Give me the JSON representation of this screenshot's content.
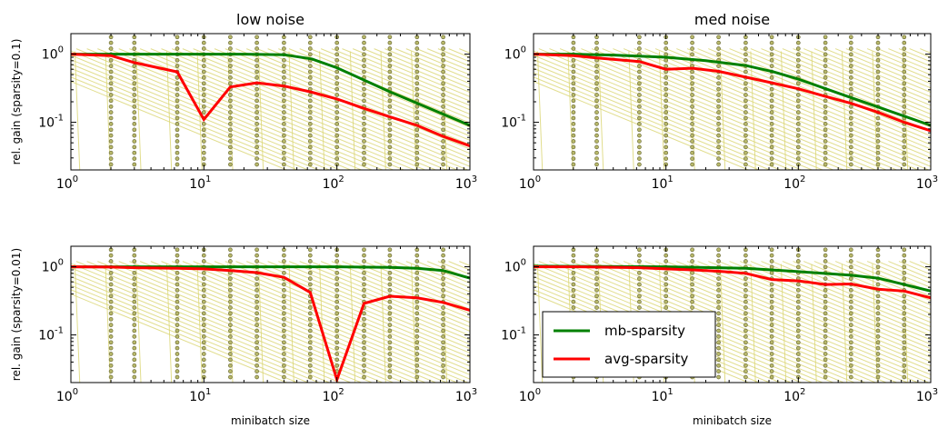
{
  "chart_data": [
    {
      "type": "line",
      "title": "low noise",
      "xlabel": "",
      "ylabel": "rel. gain (sparsity=0.1)",
      "xscale": "log",
      "yscale": "log",
      "xlim": [
        1,
        1000
      ],
      "ylim": [
        0.02,
        2
      ],
      "xticks": [
        {
          "base": "10",
          "exp": "0"
        },
        {
          "base": "10",
          "exp": "1"
        },
        {
          "base": "10",
          "exp": "2"
        },
        {
          "base": "10",
          "exp": "3"
        }
      ],
      "yticks": [
        {
          "value": 1,
          "base": "10",
          "exp": "0"
        },
        {
          "value": 0.1,
          "base": "10",
          "exp": "-1"
        }
      ],
      "series": [
        {
          "name": "mb-sparsity",
          "color": "#008000",
          "x": [
            1,
            2,
            4,
            10,
            20,
            40,
            65,
            100,
            250,
            1000
          ],
          "y": [
            1.0,
            1.0,
            1.0,
            1.0,
            1.0,
            0.98,
            0.85,
            0.63,
            0.28,
            0.09
          ]
        },
        {
          "name": "avg-sparsity",
          "color": "#ff0000",
          "x": [
            1,
            2,
            3,
            6.3,
            10,
            15.8,
            25,
            40,
            63,
            100,
            160,
            250,
            400,
            630,
            1000
          ],
          "y": [
            1.0,
            0.95,
            0.75,
            0.55,
            0.11,
            0.33,
            0.38,
            0.34,
            0.28,
            0.22,
            0.16,
            0.12,
            0.09,
            0.062,
            0.045
          ]
        }
      ],
      "background_curves": {
        "color": "#d9d470",
        "description_free": true
      }
    },
    {
      "type": "line",
      "title": "med noise",
      "xlabel": "",
      "ylabel": "",
      "xscale": "log",
      "yscale": "log",
      "xlim": [
        1,
        1000
      ],
      "ylim": [
        0.02,
        2
      ],
      "xticks": [
        {
          "base": "10",
          "exp": "0"
        },
        {
          "base": "10",
          "exp": "1"
        },
        {
          "base": "10",
          "exp": "2"
        },
        {
          "base": "10",
          "exp": "3"
        }
      ],
      "yticks": [
        {
          "value": 1,
          "base": "10",
          "exp": "0"
        },
        {
          "value": 0.1,
          "base": "10",
          "exp": "-1"
        }
      ],
      "series": [
        {
          "name": "mb-sparsity",
          "color": "#008000",
          "x": [
            1,
            2,
            4,
            10,
            20,
            40,
            65,
            100,
            250,
            1000
          ],
          "y": [
            1.0,
            1.0,
            0.97,
            0.9,
            0.8,
            0.68,
            0.55,
            0.43,
            0.23,
            0.09
          ]
        },
        {
          "name": "avg-sparsity",
          "color": "#ff0000",
          "x": [
            1,
            2,
            3,
            6.3,
            10,
            15.8,
            25,
            40,
            63,
            100,
            160,
            250,
            400,
            630,
            1000
          ],
          "y": [
            1.0,
            0.95,
            0.88,
            0.78,
            0.6,
            0.62,
            0.56,
            0.46,
            0.38,
            0.31,
            0.24,
            0.19,
            0.14,
            0.1,
            0.075
          ]
        }
      ]
    },
    {
      "type": "line",
      "title": "",
      "xlabel": "minibatch size",
      "ylabel": "rel. gain (sparsity=0.01)",
      "xscale": "log",
      "yscale": "log",
      "xlim": [
        1,
        1000
      ],
      "ylim": [
        0.02,
        2
      ],
      "xticks": [
        {
          "base": "10",
          "exp": "0"
        },
        {
          "base": "10",
          "exp": "1"
        },
        {
          "base": "10",
          "exp": "2"
        },
        {
          "base": "10",
          "exp": "3"
        }
      ],
      "yticks": [
        {
          "value": 1,
          "base": "10",
          "exp": "0"
        },
        {
          "value": 0.1,
          "base": "10",
          "exp": "-1"
        }
      ],
      "series": [
        {
          "name": "mb-sparsity",
          "color": "#008000",
          "x": [
            1,
            10,
            40,
            100,
            250,
            400,
            630,
            1000
          ],
          "y": [
            1.0,
            1.0,
            1.0,
            1.0,
            0.98,
            0.95,
            0.88,
            0.68
          ]
        },
        {
          "name": "avg-sparsity",
          "color": "#ff0000",
          "x": [
            1,
            2,
            3,
            6.3,
            10,
            15.8,
            25,
            40,
            63,
            100,
            160,
            250,
            400,
            630,
            1000
          ],
          "y": [
            1.0,
            0.99,
            0.97,
            0.95,
            0.93,
            0.88,
            0.82,
            0.7,
            0.42,
            0.022,
            0.29,
            0.37,
            0.35,
            0.3,
            0.23
          ]
        }
      ]
    },
    {
      "type": "line",
      "title": "",
      "xlabel": "minibatch size",
      "ylabel": "",
      "xscale": "log",
      "yscale": "log",
      "xlim": [
        1,
        1000
      ],
      "ylim": [
        0.02,
        2
      ],
      "xticks": [
        {
          "base": "10",
          "exp": "0"
        },
        {
          "base": "10",
          "exp": "1"
        },
        {
          "base": "10",
          "exp": "2"
        },
        {
          "base": "10",
          "exp": "3"
        }
      ],
      "yticks": [
        {
          "value": 1,
          "base": "10",
          "exp": "0"
        },
        {
          "value": 0.1,
          "base": "10",
          "exp": "-1"
        }
      ],
      "series": [
        {
          "name": "mb-sparsity",
          "color": "#008000",
          "x": [
            1,
            10,
            40,
            100,
            250,
            400,
            630,
            1000
          ],
          "y": [
            1.02,
            1.0,
            0.95,
            0.85,
            0.75,
            0.68,
            0.55,
            0.44
          ]
        },
        {
          "name": "avg-sparsity",
          "color": "#ff0000",
          "x": [
            1,
            2,
            3,
            6.3,
            10,
            15.8,
            25,
            40,
            63,
            100,
            160,
            250,
            400,
            630,
            1000
          ],
          "y": [
            1.0,
            1.0,
            0.99,
            0.97,
            0.93,
            0.9,
            0.86,
            0.8,
            0.65,
            0.62,
            0.55,
            0.56,
            0.47,
            0.44,
            0.35
          ]
        }
      ]
    }
  ],
  "legend": {
    "location": "lower-left of bottom-right panel",
    "entries": [
      {
        "label": "mb-sparsity",
        "color": "#008000"
      },
      {
        "label": "avg-sparsity",
        "color": "#ff0000"
      }
    ]
  }
}
